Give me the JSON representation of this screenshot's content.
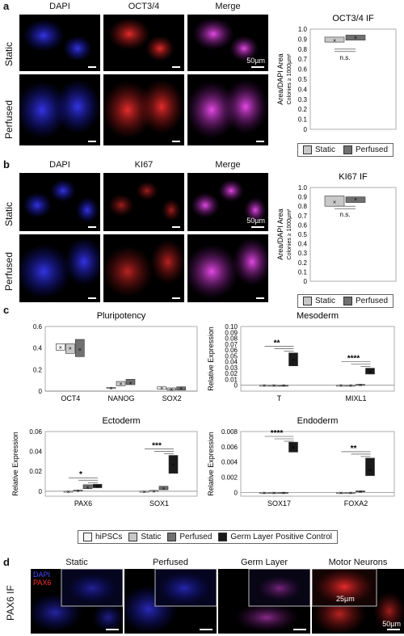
{
  "colors": {
    "dapi": "#2a2ad8",
    "oct": "#d82020",
    "merge": "#c23ad0",
    "static": "#c8c8c8",
    "perfused": "#707070",
    "hipsc": "#f4f4f4",
    "control": "#1a1a1a"
  },
  "panel_a": {
    "letter": "a",
    "columns": [
      "DAPI",
      "OCT3/4",
      "Merge"
    ],
    "rows": [
      "Static",
      "Perfused"
    ],
    "scale_label": "50µm"
  },
  "panel_b": {
    "letter": "b",
    "columns": [
      "DAPI",
      "KI67",
      "Merge"
    ],
    "rows": [
      "Static",
      "Perfused"
    ],
    "scale_label": "50µm"
  },
  "panel_c": {
    "letter": "c"
  },
  "panel_d": {
    "letter": "d",
    "row_label": "PAX6 IF",
    "columns": [
      "Static",
      "Perfused",
      "Germ Layer",
      "Motor Neurons"
    ],
    "channel_dapi": "DAPI",
    "channel_pax6": "PAX6",
    "inset_scale": "25µm",
    "scale_label": "50µm"
  },
  "legend_ab": [
    "Static",
    "Perfused"
  ],
  "legend_c": [
    "hiPSCs",
    "Static",
    "Perfused",
    "Germ Layer Positive Control"
  ],
  "chart_data": [
    {
      "id": "oct34-if",
      "type": "box",
      "title": "OCT3/4 IF",
      "ylabel": "Area/DAPI Area",
      "ylabel2": "Colonies ≥ 1000µm²",
      "ylim": [
        0,
        1.0
      ],
      "yticks": [
        "0",
        "0.1",
        "0.2",
        "0.3",
        "0.4",
        "0.5",
        "0.6",
        "0.7",
        "0.8",
        "0.9",
        "1.0"
      ],
      "series": [
        {
          "name": "Static",
          "q1": 0.87,
          "q3": 0.92,
          "mean": 0.89
        },
        {
          "name": "Perfused",
          "q1": 0.89,
          "q3": 0.94,
          "mean": 0.92
        }
      ],
      "annotation": "n.s."
    },
    {
      "id": "ki67-if",
      "type": "box",
      "title": "KI67 IF",
      "ylabel": "Area/DAPI Area",
      "ylabel2": "Colonies ≥ 1000µm²",
      "ylim": [
        0,
        1.0
      ],
      "yticks": [
        "0",
        "0.1",
        "0.2",
        "0.3",
        "0.4",
        "0.5",
        "0.6",
        "0.7",
        "0.8",
        "0.9",
        "1.0"
      ],
      "series": [
        {
          "name": "Static",
          "q1": 0.8,
          "q3": 0.91,
          "mean": 0.85
        },
        {
          "name": "Perfused",
          "q1": 0.84,
          "q3": 0.9,
          "mean": 0.88
        }
      ],
      "annotation": "n.s."
    },
    {
      "id": "pluripotency",
      "type": "box",
      "title": "Pluripotency",
      "ylabel": "",
      "ylim": [
        0,
        0.6
      ],
      "yticks": [
        "0",
        "0.2",
        "0.4",
        "0.6"
      ],
      "categories": [
        "OCT4",
        "NANOG",
        "SOX2"
      ],
      "series": [
        {
          "name": "hiPSCs",
          "boxes": [
            [
              0.38,
              0.44,
              0.41
            ],
            [
              0.025,
              0.035,
              0.03
            ],
            [
              0.02,
              0.04,
              0.03
            ]
          ]
        },
        {
          "name": "Static",
          "boxes": [
            [
              0.35,
              0.44,
              0.4
            ],
            [
              0.05,
              0.09,
              0.07
            ],
            [
              0.01,
              0.03,
              0.02
            ]
          ]
        },
        {
          "name": "Perfused",
          "boxes": [
            [
              0.32,
              0.48,
              0.39
            ],
            [
              0.06,
              0.11,
              0.08
            ],
            [
              0.01,
              0.04,
              0.03
            ]
          ]
        }
      ],
      "significance": []
    },
    {
      "id": "mesoderm",
      "type": "box",
      "title": "Mesoderm",
      "ylabel": "Relative Expression",
      "ylim": [
        -0.01,
        0.1
      ],
      "yticks": [
        "0",
        "0.01",
        "0.02",
        "0.03",
        "0.04",
        "0.05",
        "0.06",
        "0.07",
        "0.08",
        "0.09",
        "0.10"
      ],
      "categories": [
        "T",
        "MIXL1"
      ],
      "series": [
        {
          "name": "hiPSCs",
          "boxes": [
            [
              0,
              0,
              0
            ],
            [
              0,
              0,
              0
            ]
          ]
        },
        {
          "name": "Static",
          "boxes": [
            [
              0,
              0,
              0
            ],
            [
              0,
              0,
              0
            ]
          ]
        },
        {
          "name": "Perfused",
          "boxes": [
            [
              0,
              0,
              0
            ],
            [
              0.0005,
              0.0015,
              0.001
            ]
          ]
        },
        {
          "name": "Germ Layer Positive Control",
          "boxes": [
            [
              0.033,
              0.055,
              0.044
            ],
            [
              0.019,
              0.029,
              0.024
            ]
          ]
        }
      ],
      "significance": [
        {
          "category": "T",
          "stars": "**"
        },
        {
          "category": "MIXL1",
          "stars": "****"
        }
      ]
    },
    {
      "id": "ectoderm",
      "type": "box",
      "title": "Ectoderm",
      "ylabel": "Relative Expression",
      "ylim": [
        -0.005,
        0.06
      ],
      "yticks": [
        "0",
        "0.02",
        "0.04",
        "0.06"
      ],
      "categories": [
        "PAX6",
        "SOX1"
      ],
      "series": [
        {
          "name": "hiPSCs",
          "boxes": [
            [
              0,
              0,
              0
            ],
            [
              0,
              0,
              0
            ]
          ]
        },
        {
          "name": "Static",
          "boxes": [
            [
              0.0002,
              0.0012,
              0.0007
            ],
            [
              0,
              0.0008,
              0.0004
            ]
          ]
        },
        {
          "name": "Perfused",
          "boxes": [
            [
              0.0025,
              0.0065,
              0.0045
            ],
            [
              0.0015,
              0.005,
              0.003
            ]
          ]
        },
        {
          "name": "Germ Layer Positive Control",
          "boxes": [
            [
              0.0035,
              0.007,
              0.005
            ],
            [
              0.018,
              0.036,
              0.027
            ]
          ]
        }
      ],
      "significance": [
        {
          "category": "PAX6",
          "stars": "*"
        },
        {
          "category": "SOX1",
          "stars": "***"
        }
      ]
    },
    {
      "id": "endoderm",
      "type": "box",
      "title": "Endoderm",
      "ylabel": "Relative Expression",
      "ylim": [
        -0.0005,
        0.008
      ],
      "yticks": [
        "0",
        "0.002",
        "0.004",
        "0.006",
        "0.008"
      ],
      "categories": [
        "SOX17",
        "FOXA2"
      ],
      "series": [
        {
          "name": "hiPSCs",
          "boxes": [
            [
              0,
              0,
              0
            ],
            [
              0,
              0,
              0
            ]
          ]
        },
        {
          "name": "Static",
          "boxes": [
            [
              0,
              0,
              0
            ],
            [
              0,
              0,
              0
            ]
          ]
        },
        {
          "name": "Perfused",
          "boxes": [
            [
              0,
              0,
              0
            ],
            [
              0.0001,
              0.0002,
              0.00015
            ]
          ]
        },
        {
          "name": "Germ Layer Positive Control",
          "boxes": [
            [
              0.0053,
              0.0066,
              0.006
            ],
            [
              0.0022,
              0.0045,
              0.003
            ]
          ]
        }
      ],
      "significance": [
        {
          "category": "SOX17",
          "stars": "****"
        },
        {
          "category": "FOXA2",
          "stars": "**"
        }
      ]
    }
  ]
}
